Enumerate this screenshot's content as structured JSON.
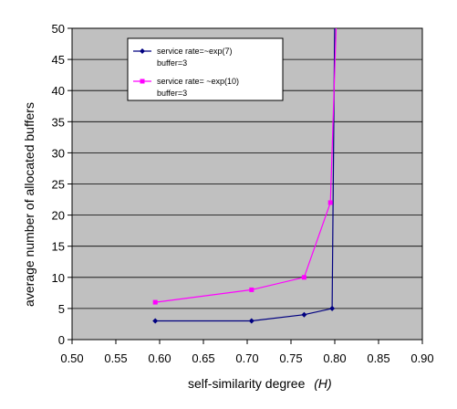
{
  "chart_data": {
    "type": "line",
    "title": "",
    "xlabel": "self-similarity degree",
    "xlabel_italic": "(H)",
    "ylabel": "average number of allocated buffers",
    "xlim": [
      0.5,
      0.9
    ],
    "ylim": [
      0,
      50
    ],
    "xticks": [
      "0.50",
      "0.55",
      "0.60",
      "0.65",
      "0.70",
      "0.75",
      "0.80",
      "0.85",
      "0.90"
    ],
    "yticks": [
      "0",
      "5",
      "10",
      "15",
      "20",
      "25",
      "30",
      "35",
      "40",
      "45",
      "50"
    ],
    "grid": true,
    "plot_background": "#c0c0c0",
    "legend_position": "top-left",
    "series": [
      {
        "name_line1": "service rate=~exp(7)",
        "name_line2": "buffer=3",
        "color": "#000080",
        "marker": "diamond",
        "points": [
          [
            0.595,
            3.0
          ],
          [
            0.705,
            3.0
          ],
          [
            0.765,
            4.0
          ],
          [
            0.797,
            5.0
          ]
        ],
        "tail": [
          [
            0.797,
            5.0
          ],
          [
            0.8,
            52.0
          ]
        ]
      },
      {
        "name_line1": "service rate= ~exp(10)",
        "name_line2": "buffer=3",
        "color": "#ff00ff",
        "marker": "square",
        "points": [
          [
            0.595,
            6.0
          ],
          [
            0.705,
            8.0
          ],
          [
            0.765,
            10.0
          ],
          [
            0.795,
            22.0
          ]
        ],
        "tail": [
          [
            0.795,
            22.0
          ],
          [
            0.802,
            52.0
          ]
        ]
      }
    ]
  }
}
